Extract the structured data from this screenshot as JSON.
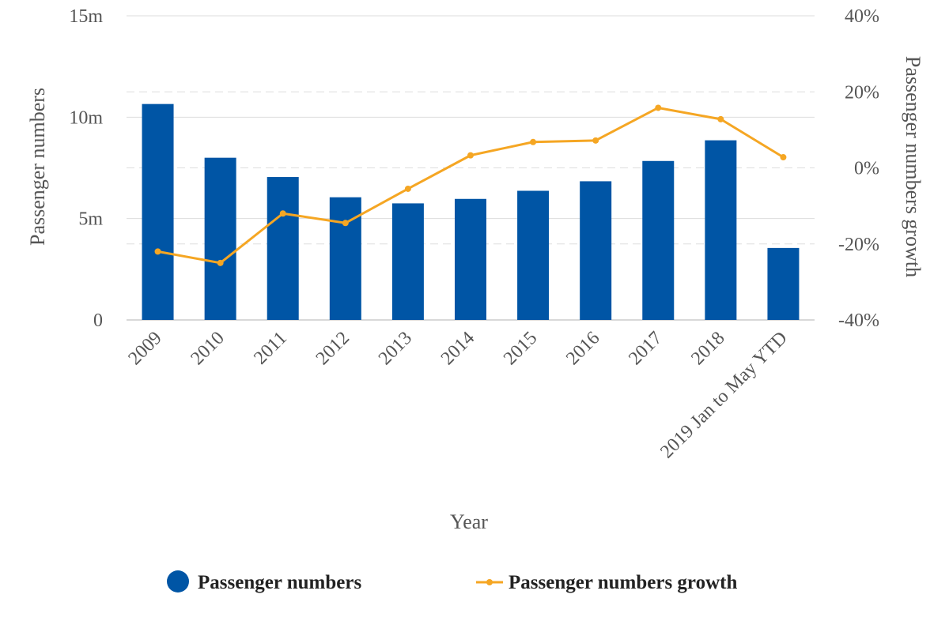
{
  "chart_data": {
    "type": "bar",
    "categories": [
      "2009",
      "2010",
      "2011",
      "2012",
      "2013",
      "2014",
      "2015",
      "2016",
      "2017",
      "2018",
      "2019 Jan to May YTD"
    ],
    "series": [
      {
        "name": "Passenger numbers",
        "type": "bar",
        "axis": "left",
        "color": "#0055a5",
        "values": [
          10.65,
          8.0,
          7.05,
          6.05,
          5.75,
          5.97,
          6.37,
          6.84,
          7.84,
          8.86,
          3.55
        ]
      },
      {
        "name": "Passenger numbers growth",
        "type": "line",
        "axis": "right",
        "color": "#f5a623",
        "values": [
          -22,
          -25,
          -12,
          -14.5,
          -5.5,
          3.3,
          6.8,
          7.2,
          15.8,
          12.8,
          2.8
        ]
      }
    ],
    "xlabel": "Year",
    "ylabel_left": "Passenger numbers",
    "ylabel_right": "Passenger numbers growth",
    "ylim_left": [
      0,
      15
    ],
    "ylim_right": [
      -40,
      40
    ],
    "left_ticks": [
      {
        "value": 0,
        "label": "0"
      },
      {
        "value": 5,
        "label": "5m"
      },
      {
        "value": 10,
        "label": "10m"
      },
      {
        "value": 15,
        "label": "15m"
      }
    ],
    "right_ticks": [
      {
        "value": -40,
        "label": "-40%"
      },
      {
        "value": -20,
        "label": "-20%"
      },
      {
        "value": 0,
        "label": "0%"
      },
      {
        "value": 20,
        "label": "20%"
      },
      {
        "value": 40,
        "label": "40%"
      }
    ],
    "grid": true,
    "legend_position": "bottom-center"
  }
}
